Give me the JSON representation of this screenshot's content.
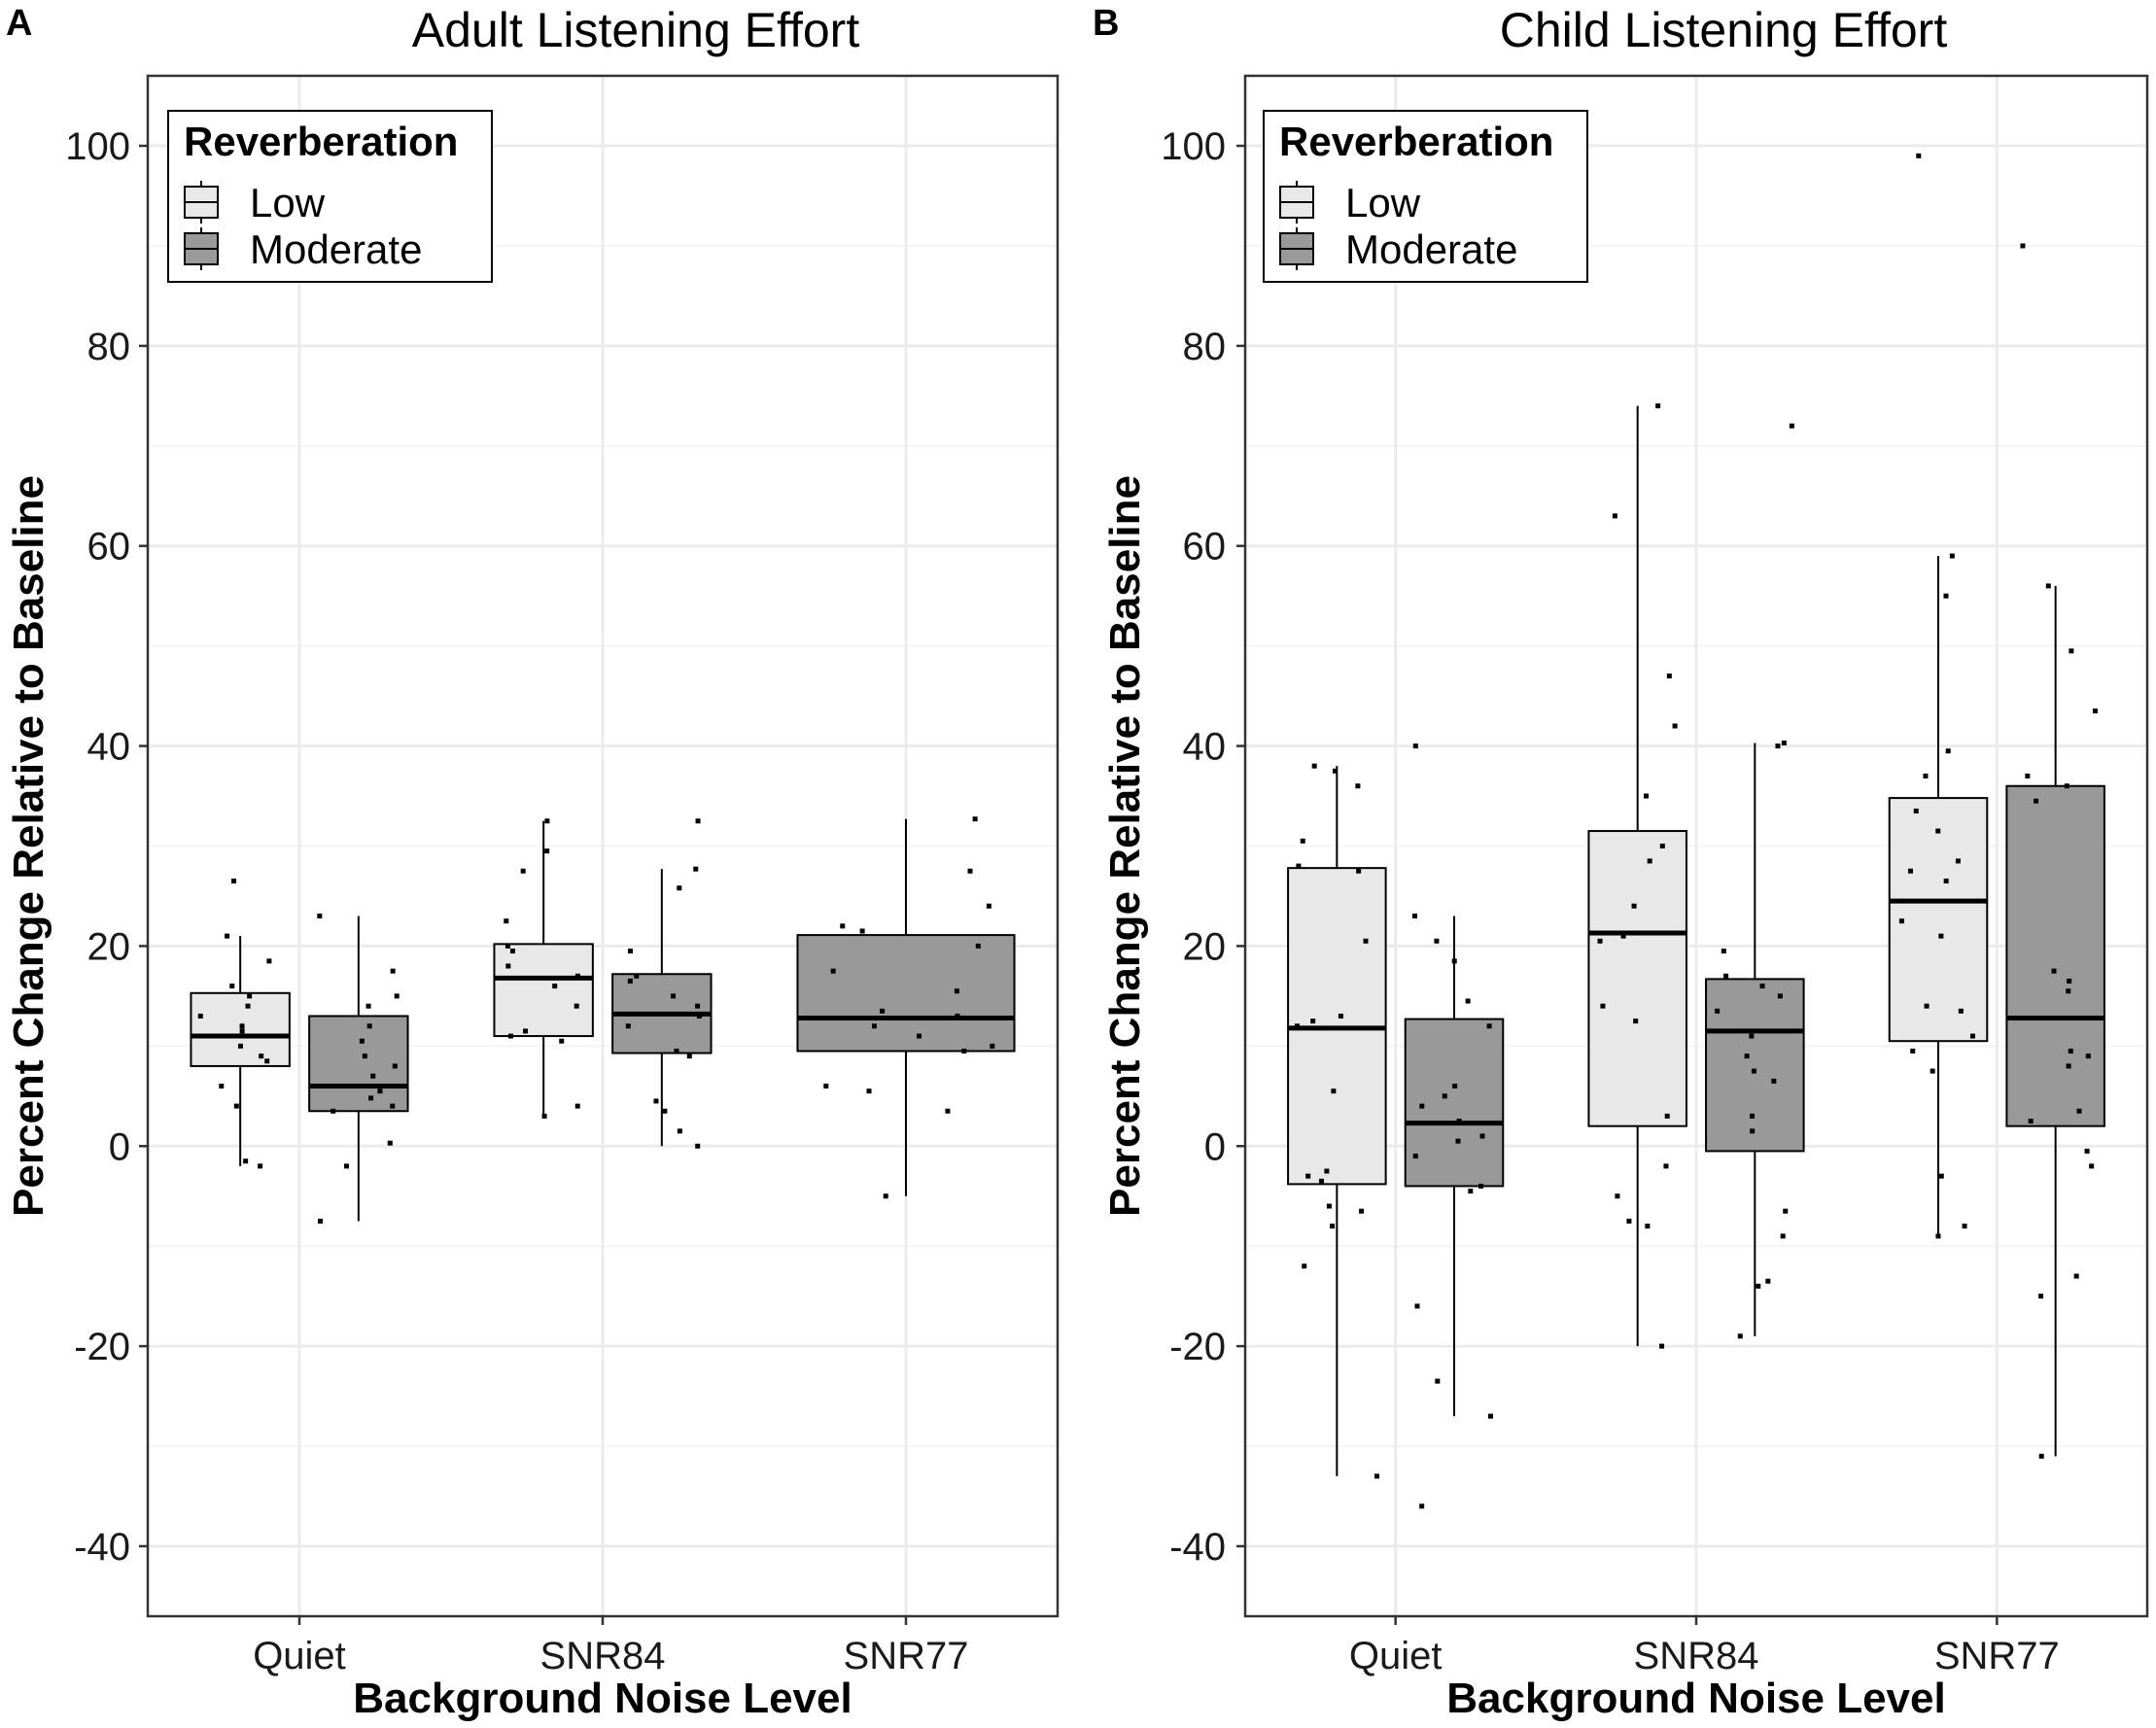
{
  "panel_labels": [
    "A",
    "B"
  ],
  "colors": {
    "low_fill": "#e8e8e8",
    "moderate_fill": "#999999",
    "grid_major": "#ebebeb",
    "grid_minor": "#f4f4f4",
    "border": "#333333",
    "point": "#000000"
  },
  "chart_data": [
    {
      "type": "box",
      "title": "Adult Listening Effort",
      "xlabel": "Background Noise Level",
      "ylabel": "Percent Change Relative to Baseline",
      "ylim": [
        -47,
        107
      ],
      "yticks": [
        -40,
        -20,
        0,
        20,
        40,
        60,
        80,
        100
      ],
      "categories": [
        "Quiet",
        "SNR84",
        "SNR77"
      ],
      "legend": {
        "title": "Reverberation",
        "position": "top-left",
        "entries": [
          "Low",
          "Moderate"
        ]
      },
      "boxes": [
        {
          "category": "Quiet",
          "group": "Low",
          "whisker_low": -2,
          "q1": 8,
          "median": 11,
          "q3": 15.3,
          "whisker_high": 21,
          "points": [
            -2,
            -1.5,
            4,
            6,
            8.5,
            9,
            10,
            11.5,
            12,
            13,
            14,
            15,
            16,
            18.5,
            21,
            26.5
          ]
        },
        {
          "category": "Quiet",
          "group": "Moderate",
          "whisker_low": -7.5,
          "q1": 3.5,
          "median": 6,
          "q3": 13,
          "whisker_high": 23,
          "points": [
            -7.5,
            -2,
            0.3,
            3.5,
            4,
            4.8,
            5.5,
            6,
            7,
            8,
            9,
            10.5,
            12,
            14,
            15,
            17.5,
            23
          ]
        },
        {
          "category": "SNR84",
          "group": "Low",
          "whisker_low": 3,
          "q1": 11,
          "median": 16.8,
          "q3": 20.2,
          "whisker_high": 32.5,
          "points": [
            3,
            4,
            10.5,
            11,
            11.5,
            14,
            16,
            17,
            18,
            19.5,
            20,
            22.5,
            27.5,
            29.5,
            32.5
          ]
        },
        {
          "category": "SNR84",
          "group": "Moderate",
          "whisker_low": 0,
          "q1": 9.3,
          "median": 13.2,
          "q3": 17.2,
          "whisker_high": 27.7,
          "points": [
            0,
            1.5,
            3.5,
            4.5,
            9,
            9.5,
            12,
            13,
            14,
            15,
            16.5,
            17,
            19.5,
            25.8,
            27.7,
            32.5
          ]
        },
        {
          "category": "SNR77",
          "group": "Moderate",
          "whisker_low": -5,
          "q1": 9.5,
          "median": 12.8,
          "q3": 21.1,
          "whisker_high": 32.7,
          "points": [
            -5,
            3.5,
            5.5,
            6,
            9.5,
            10,
            11,
            12,
            13,
            13.5,
            15.5,
            17.5,
            20,
            21.5,
            22,
            24,
            27.5,
            32.7
          ]
        }
      ]
    },
    {
      "type": "box",
      "title": "Child Listening Effort",
      "xlabel": "Background Noise Level",
      "ylabel": "Percent Change Relative to Baseline",
      "ylim": [
        -47,
        107
      ],
      "yticks": [
        -40,
        -20,
        0,
        20,
        40,
        60,
        80,
        100
      ],
      "categories": [
        "Quiet",
        "SNR84",
        "SNR77"
      ],
      "legend": {
        "title": "Reverberation",
        "position": "top-left",
        "entries": [
          "Low",
          "Moderate"
        ]
      },
      "boxes": [
        {
          "category": "Quiet",
          "group": "Low",
          "whisker_low": -33,
          "q1": -3.8,
          "median": 11.8,
          "q3": 27.8,
          "whisker_high": 38,
          "points": [
            -33,
            -12,
            -8,
            -6.5,
            -6,
            -3.5,
            -3,
            -2.5,
            5.5,
            12,
            12.5,
            13,
            20.5,
            27.5,
            28,
            30.5,
            36,
            37.5,
            38
          ]
        },
        {
          "category": "Quiet",
          "group": "Moderate",
          "whisker_low": -27,
          "q1": -4,
          "median": 2.3,
          "q3": 12.7,
          "whisker_high": 23,
          "points": [
            -36,
            -27,
            -23.5,
            -16,
            -4.5,
            -4,
            -1,
            0.5,
            1,
            2.5,
            4,
            5,
            6,
            12,
            14.5,
            18.5,
            20.5,
            23,
            40
          ]
        },
        {
          "category": "SNR84",
          "group": "Low",
          "whisker_low": -20,
          "q1": 2,
          "median": 21.3,
          "q3": 31.5,
          "whisker_high": 74,
          "points": [
            -20,
            -8,
            -7.5,
            -5,
            -2,
            3,
            12.5,
            14,
            20.5,
            21,
            24,
            28.5,
            30,
            35,
            42,
            47,
            63,
            74
          ]
        },
        {
          "category": "SNR84",
          "group": "Moderate",
          "whisker_low": -19,
          "q1": -0.5,
          "median": 11.5,
          "q3": 16.7,
          "whisker_high": 40.3,
          "points": [
            -19,
            -14,
            -13.5,
            -9,
            -6.5,
            1.5,
            3,
            6.5,
            7.5,
            9,
            11,
            13.5,
            15,
            16,
            17,
            19.5,
            40,
            40.3,
            72
          ]
        },
        {
          "category": "SNR77",
          "group": "Low",
          "whisker_low": -9,
          "q1": 10.5,
          "median": 24.5,
          "q3": 34.8,
          "whisker_high": 59,
          "points": [
            -9,
            -8,
            -3,
            7.5,
            9.5,
            11,
            13.5,
            14,
            21,
            22.5,
            26.5,
            27.5,
            28.5,
            31.5,
            33.5,
            37,
            39.5,
            55,
            59,
            99
          ]
        },
        {
          "category": "SNR77",
          "group": "Moderate",
          "whisker_low": -31,
          "q1": 2,
          "median": 12.8,
          "q3": 36,
          "whisker_high": 56,
          "points": [
            -31,
            -15,
            -13,
            -2,
            -0.5,
            2.5,
            3.5,
            8,
            9,
            9.5,
            15.5,
            16.5,
            17.5,
            34.5,
            36,
            37,
            43.5,
            49.5,
            56,
            90
          ]
        }
      ]
    }
  ]
}
